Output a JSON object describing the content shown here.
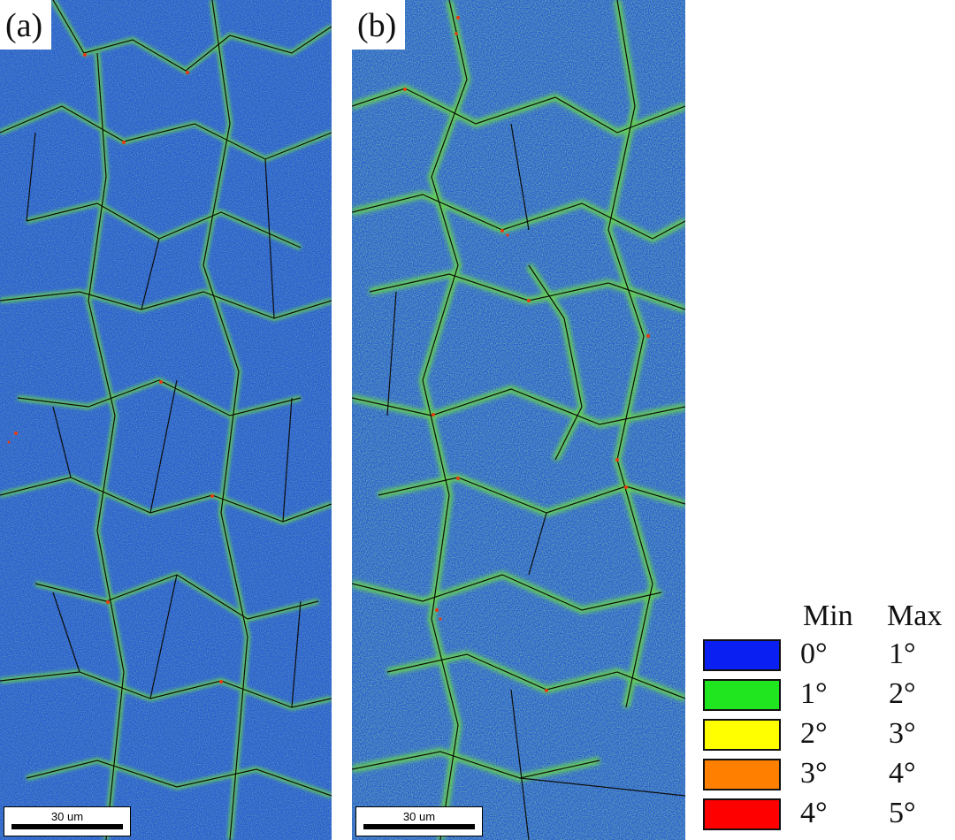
{
  "panels": [
    {
      "label": "(a)",
      "scale_bar": "30 um"
    },
    {
      "label": "(b)",
      "scale_bar": "30 um"
    }
  ],
  "legend": {
    "min_header": "Min",
    "max_header": "Max",
    "rows": [
      {
        "color": "#0a1ff2",
        "min": "0°",
        "max": "1°"
      },
      {
        "color": "#1fe61f",
        "min": "1°",
        "max": "2°"
      },
      {
        "color": "#ffff00",
        "min": "2°",
        "max": "3°"
      },
      {
        "color": "#ff8000",
        "min": "3°",
        "max": "4°"
      },
      {
        "color": "#ff0000",
        "min": "4°",
        "max": "5°"
      }
    ]
  },
  "colors": {
    "map_background": "#2a5ccf",
    "boundary": "#0d0d0d",
    "low_misorientation": "#6ee33c",
    "high_misorientation": "#e83b10"
  }
}
